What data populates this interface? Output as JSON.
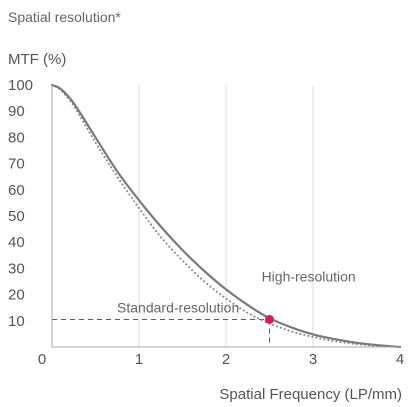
{
  "chart_data": {
    "type": "line",
    "title": "Spatial resolution*",
    "ylabel": "MTF (%)",
    "xlabel": "Spatial Frequency (LP/mm)",
    "xlim": [
      0,
      4
    ],
    "ylim": [
      0,
      100
    ],
    "x_ticks": [
      "0",
      "1",
      "2",
      "3",
      "4"
    ],
    "y_ticks": [
      "10",
      "20",
      "30",
      "40",
      "50",
      "60",
      "70",
      "80",
      "90",
      "100"
    ],
    "grid": "vertical",
    "series": [
      {
        "name": "High-resolution",
        "style": "solid",
        "color": "#7a7a7a",
        "x": [
          0,
          0.1,
          0.25,
          0.5,
          0.75,
          1.0,
          1.25,
          1.5,
          1.75,
          2.0,
          2.25,
          2.5,
          2.75,
          3.0,
          3.25,
          3.5,
          3.75,
          4.0
        ],
        "y": [
          100,
          98.5,
          93,
          80,
          67,
          56,
          46,
          37,
          29,
          22,
          16,
          11,
          7.5,
          4.8,
          3.0,
          1.6,
          0.7,
          0
        ]
      },
      {
        "name": "Standard-resolution",
        "style": "dotted",
        "color": "#888888",
        "x": [
          0,
          0.1,
          0.25,
          0.5,
          0.75,
          1.0,
          1.25,
          1.5,
          1.75,
          2.0,
          2.25,
          2.5,
          2.75,
          3.0,
          3.25,
          3.5,
          3.75,
          4.0
        ],
        "y": [
          100,
          98,
          92,
          78,
          65,
          53,
          42,
          33,
          25,
          18.5,
          13,
          9,
          6,
          3.8,
          2.2,
          1.1,
          0.4,
          0
        ]
      }
    ],
    "annotations": [
      {
        "text": "High-resolution",
        "x": 2.95,
        "y": 27
      },
      {
        "text": "Standard-resolution",
        "x": 1.45,
        "y": 15
      }
    ],
    "reference_point": {
      "x": 2.5,
      "y": 10.5,
      "color": "#d81b60"
    }
  }
}
